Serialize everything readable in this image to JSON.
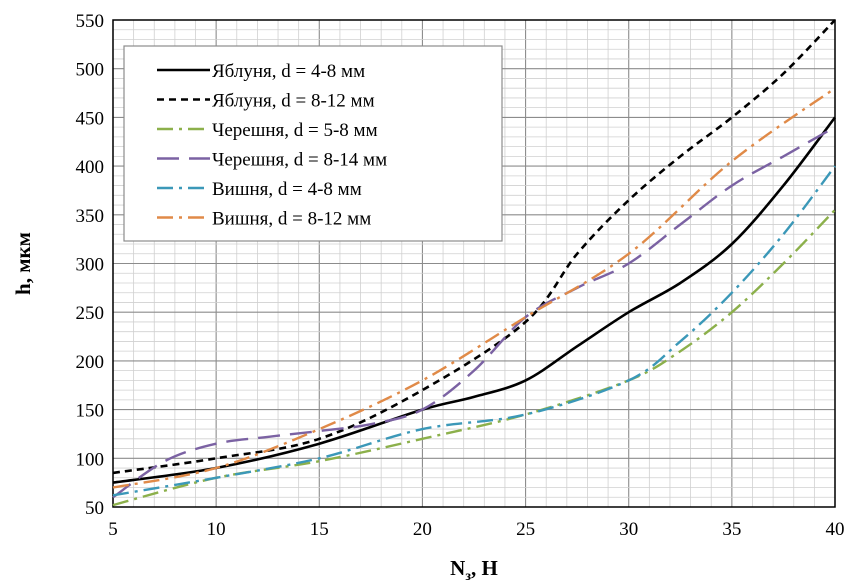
{
  "chart_data": {
    "type": "line",
    "title": "",
    "xlabel": "N",
    "xlabel_sub": "з",
    "xlabel_unit": ", Н",
    "ylabel": "h, мкм",
    "xlim": [
      5,
      40
    ],
    "ylim": [
      50,
      550
    ],
    "x_ticks": [
      5,
      10,
      15,
      20,
      25,
      30,
      35,
      40
    ],
    "y_ticks": [
      50,
      100,
      150,
      200,
      250,
      300,
      350,
      400,
      450,
      500,
      550
    ],
    "grid": true,
    "legend_position": "top-left",
    "series": [
      {
        "name": "Яблуня, d = 4-8 мм",
        "color": "#000000",
        "dash": "solid",
        "x": [
          5,
          10,
          15,
          20,
          22.5,
          25,
          27.5,
          30,
          32.5,
          35,
          37.5,
          40
        ],
        "y": [
          75,
          90,
          115,
          150,
          163,
          180,
          215,
          250,
          280,
          320,
          380,
          450
        ]
      },
      {
        "name": "Яблуня, d = 8-12 мм",
        "color": "#000000",
        "dash": "dash",
        "x": [
          5,
          10,
          15,
          20,
          25,
          27.5,
          30,
          32.5,
          35,
          37.5,
          40
        ],
        "y": [
          85,
          100,
          120,
          170,
          240,
          310,
          365,
          410,
          450,
          495,
          550
        ]
      },
      {
        "name": "Черешня, d = 5-8 мм",
        "color": "#8cb04b",
        "dash": "dashdot",
        "x": [
          5,
          10,
          15,
          20,
          25,
          30,
          32.5,
          35,
          37.5,
          40
        ],
        "y": [
          52,
          80,
          97,
          120,
          145,
          180,
          210,
          250,
          300,
          355
        ]
      },
      {
        "name": "Черешня, d = 8-14 мм",
        "color": "#7b62a3",
        "dash": "longdash",
        "x": [
          5,
          7.5,
          10,
          12.5,
          15,
          17.5,
          20,
          22.5,
          25,
          27.5,
          30,
          32.5,
          35,
          37.5,
          40
        ],
        "y": [
          60,
          97,
          115,
          122,
          128,
          135,
          150,
          190,
          245,
          275,
          300,
          340,
          380,
          410,
          440
        ]
      },
      {
        "name": "Вишня, d = 4-8 мм",
        "color": "#3b98b8",
        "dash": "dashdot",
        "x": [
          5,
          10,
          15,
          20,
          25,
          30,
          32.5,
          35,
          37.5,
          40
        ],
        "y": [
          62,
          80,
          100,
          130,
          145,
          180,
          220,
          270,
          330,
          400
        ]
      },
      {
        "name": "Вишня, d = 8-12 мм",
        "color": "#e08a48",
        "dash": "dashdot",
        "x": [
          5,
          10,
          15,
          20,
          25,
          30,
          35,
          40
        ],
        "y": [
          70,
          90,
          130,
          180,
          245,
          310,
          405,
          480
        ]
      }
    ]
  }
}
